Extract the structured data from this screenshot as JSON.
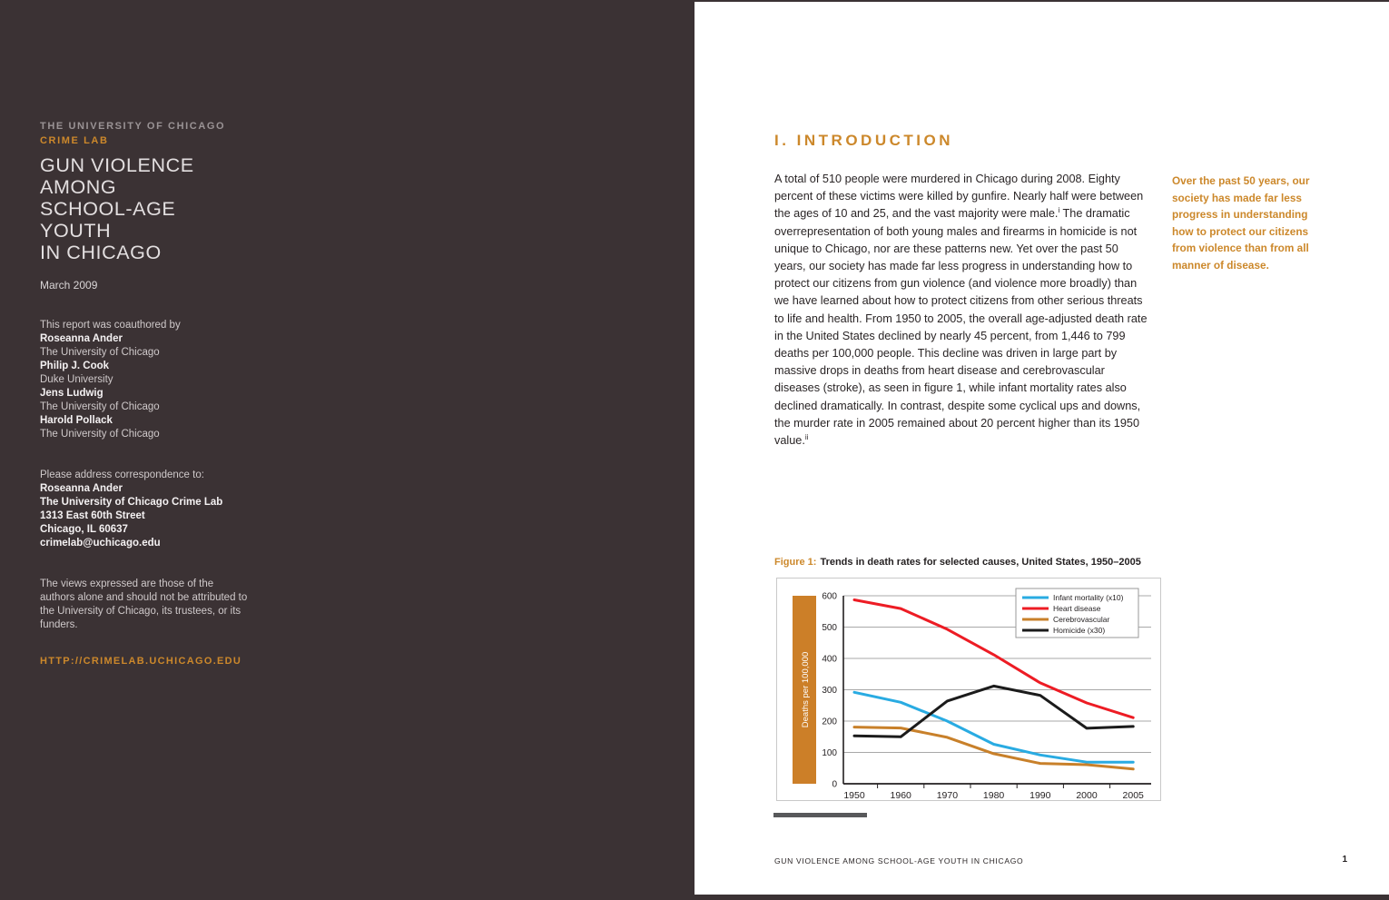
{
  "accent_orange": "#cc882b",
  "cover_background": "#3b3234",
  "cover": {
    "institution": "THE UNIVERSITY OF CHICAGO",
    "lab": "CRIME LAB",
    "title_lines": [
      "GUN VIOLENCE",
      "AMONG",
      "SCHOOL-AGE",
      "YOUTH",
      "IN CHICAGO"
    ],
    "date": "March 2009",
    "coauthored_intro": "This report was coauthored by",
    "authors": [
      {
        "name": "Roseanna Ander",
        "affiliation": "The University of Chicago"
      },
      {
        "name": "Philip J. Cook",
        "affiliation": "Duke University"
      },
      {
        "name": "Jens Ludwig",
        "affiliation": "The University of Chicago"
      },
      {
        "name": "Harold Pollack",
        "affiliation": "The University of Chicago"
      }
    ],
    "correspondence_intro": "Please address correspondence to:",
    "correspondence_lines": [
      "Roseanna Ander",
      "The University of Chicago Crime Lab",
      "1313 East 60th Street",
      "Chicago, IL 60637",
      "crimelab@uchicago.edu"
    ],
    "disclaimer": "The views expressed are those of the authors alone and should not be attributed to the University of Chicago, its trustees, or its funders.",
    "url": "HTTP://CRIMELAB.UCHICAGO.EDU"
  },
  "main": {
    "heading": "I. INTRODUCTION",
    "paragraph": {
      "part1": "A total of 510 people were murdered in Chicago during 2008. Eighty percent of these victims were killed by gunfire. Nearly half were between the ages of 10 and 25, and the vast majority were male.",
      "sup1": "i",
      "part2": " The dramatic overrepresentation of both young males and firearms in homicide is not unique to Chicago, nor are these patterns new. Yet over the past 50 years, our society has made far less progress in understanding how to protect our citizens from gun violence (and violence more broadly) than we have learned about how to protect citizens from other serious threats to life and health. From 1950 to 2005, the overall age-adjusted death rate in the United States declined by nearly 45 percent, from 1,446 to 799 deaths per 100,000 people. This decline was driven in large part by massive drops in deaths from heart disease and cerebrovascular diseases (stroke), as seen in figure 1, while infant mortality rates also declined dramatically. In contrast, despite some cyclical ups and downs, the murder rate in 2005 remained about 20 percent higher than its 1950 value.",
      "sup2": "ii"
    },
    "pullquote": "Over the past 50 years, our society has made far less progress in understanding how to protect our citizens from violence than from all manner of disease.",
    "figure_label": "Figure 1:",
    "figure_caption": "Trends in death rates for selected causes, United States, 1950–2005",
    "footer_text": "GUN VIOLENCE AMONG SCHOOL-AGE YOUTH IN CHICAGO",
    "page_number": "1"
  },
  "chart_data": {
    "type": "line",
    "title": "Trends in death rates for selected causes, United States, 1950–2005",
    "xlabel": "",
    "ylabel": "Deaths per 100,000",
    "ylabel_bar_color": "#cc7f28",
    "x": [
      1950,
      1960,
      1970,
      1980,
      1990,
      2000,
      2005
    ],
    "x_tick_labels": [
      "1950",
      "1960",
      "1970",
      "1980",
      "1990",
      "2000",
      "2005"
    ],
    "ylim": [
      0,
      600
    ],
    "y_ticks": [
      0,
      100,
      200,
      300,
      400,
      500,
      600
    ],
    "grid": "horizontal",
    "legend_position": "top-right",
    "series": [
      {
        "name": "Infant mortality (x10)",
        "color": "#29abe2",
        "values": [
          292,
          260,
          200,
          126,
          92,
          69,
          69
        ]
      },
      {
        "name": "Heart disease",
        "color": "#ed1c24",
        "values": [
          587,
          559,
          493,
          412,
          322,
          258,
          211
        ]
      },
      {
        "name": "Cerebrovascular",
        "color": "#c8802a",
        "values": [
          181,
          178,
          148,
          96,
          65,
          61,
          47
        ]
      },
      {
        "name": "Homicide (x30)",
        "color": "#1b1b1b",
        "values": [
          153,
          150,
          264,
          312,
          282,
          177,
          183
        ]
      }
    ]
  }
}
